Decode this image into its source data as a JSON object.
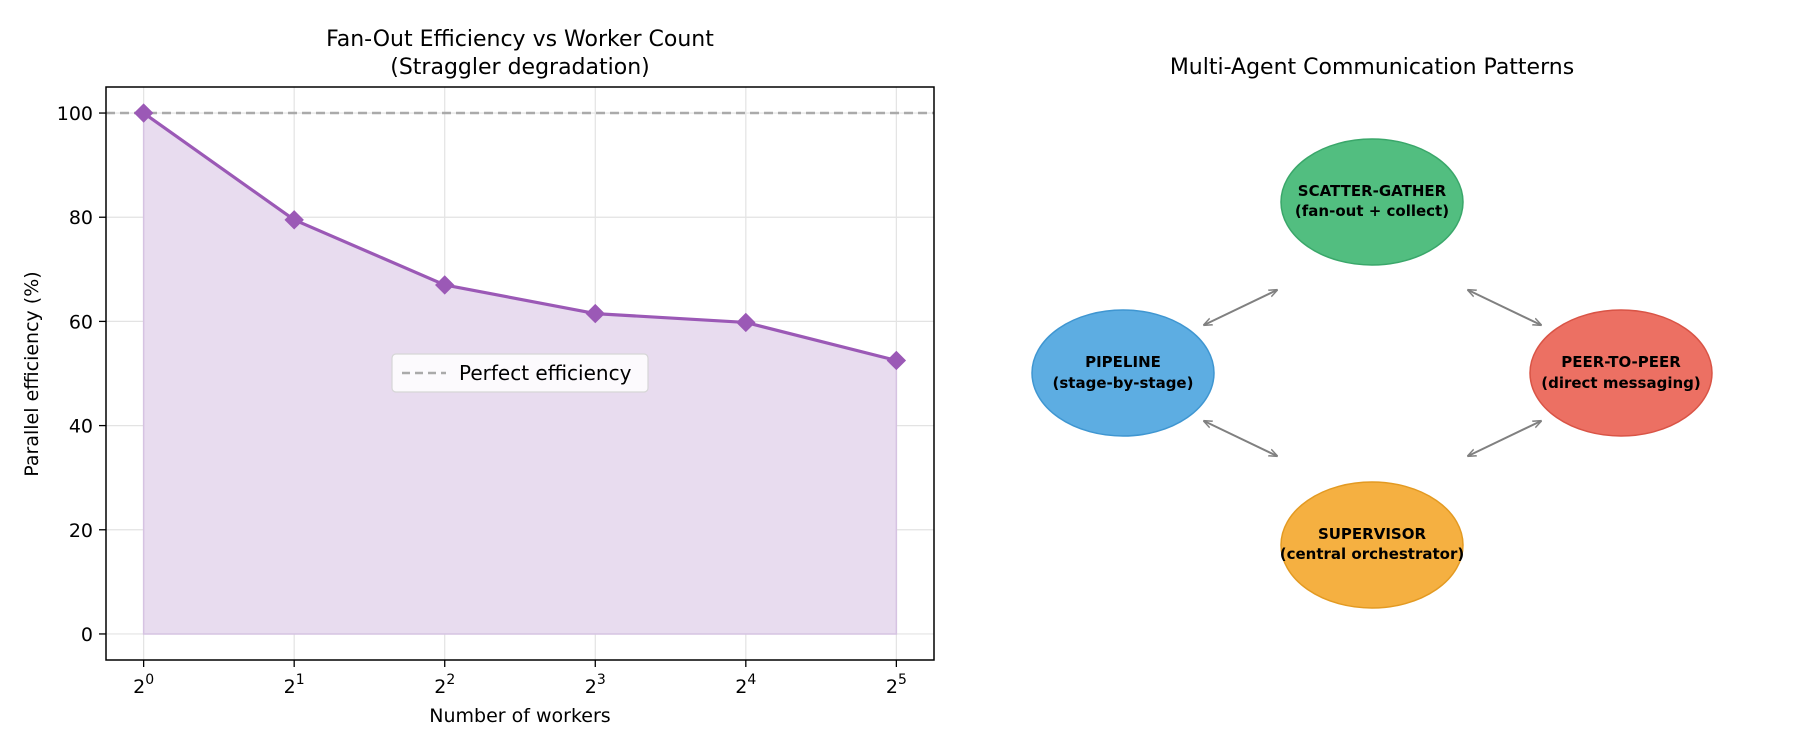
{
  "chart_data": [
    {
      "type": "line",
      "title_line1": "Fan-Out Efficiency vs Worker Count",
      "title_line2": "(Straggler degradation)",
      "xlabel": "Number of workers",
      "ylabel": "Parallel efficiency (%)",
      "x_scale": "log2",
      "x": [
        1,
        2,
        4,
        8,
        16,
        32
      ],
      "x_tick_base": "2",
      "x_tick_exponents": [
        "0",
        "1",
        "2",
        "3",
        "4",
        "5"
      ],
      "y_ticks": [
        "0",
        "20",
        "40",
        "60",
        "80",
        "100"
      ],
      "ylim": [
        -5,
        105
      ],
      "series": [
        {
          "values": [
            100,
            79.5,
            67,
            61.5,
            59.8,
            52.5
          ],
          "color": "#9b59b6",
          "marker": "diamond",
          "fill": "#e8dcef"
        }
      ],
      "reference_line": {
        "y": 100,
        "label": "Perfect efficiency",
        "color": "#aaaaaa",
        "style": "dashed"
      },
      "legend_position": "center",
      "grid": true
    },
    {
      "type": "diagram",
      "title": "Multi-Agent Communication Patterns",
      "nodes": [
        {
          "id": "scatter",
          "line1": "SCATTER-GATHER",
          "line2": "(fan-out + collect)",
          "color": "#52be80"
        },
        {
          "id": "pipeline",
          "line1": "PIPELINE",
          "line2": "(stage-by-stage)",
          "color": "#5dade2"
        },
        {
          "id": "peer",
          "line1": "PEER-TO-PEER",
          "line2": "(direct messaging)",
          "color": "#ec7063"
        },
        {
          "id": "supervisor",
          "line1": "SUPERVISOR",
          "line2": "(central orchestrator)",
          "color": "#f5b041"
        }
      ],
      "edges": [
        {
          "from": "pipeline",
          "to": "scatter",
          "bidirectional": true
        },
        {
          "from": "scatter",
          "to": "peer",
          "bidirectional": true
        },
        {
          "from": "pipeline",
          "to": "supervisor",
          "bidirectional": true
        },
        {
          "from": "supervisor",
          "to": "peer",
          "bidirectional": true
        }
      ],
      "edge_color": "#808080"
    }
  ]
}
